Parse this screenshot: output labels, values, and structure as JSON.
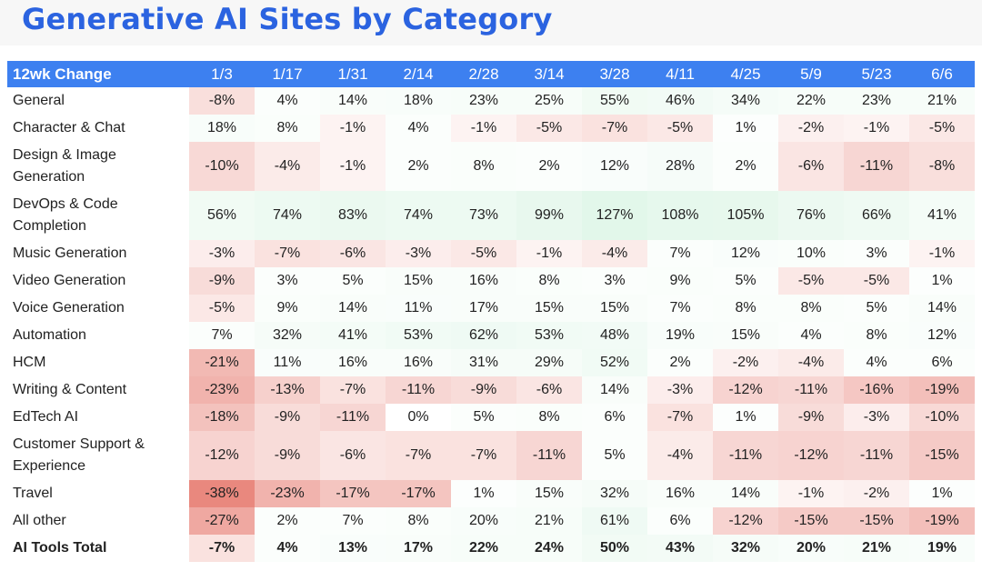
{
  "page": {
    "title": "Generative AI Sites by Category"
  },
  "chart_data": {
    "type": "table",
    "title": "Generative AI Sites by Category",
    "header_label": "12wk Change",
    "columns": [
      "1/3",
      "1/17",
      "1/31",
      "2/14",
      "2/28",
      "3/14",
      "3/28",
      "4/11",
      "4/25",
      "5/9",
      "5/23",
      "6/6"
    ],
    "rows": [
      {
        "label": "General",
        "values": [
          -8,
          4,
          14,
          18,
          23,
          25,
          55,
          46,
          34,
          22,
          23,
          21
        ]
      },
      {
        "label": "Character & Chat",
        "values": [
          18,
          8,
          -1,
          4,
          -1,
          -5,
          -7,
          -5,
          1,
          -2,
          -1,
          -5
        ]
      },
      {
        "label": "Design & Image Generation",
        "values": [
          -10,
          -4,
          -1,
          2,
          8,
          2,
          12,
          28,
          2,
          -6,
          -11,
          -8
        ]
      },
      {
        "label": "DevOps & Code Completion",
        "values": [
          56,
          74,
          83,
          74,
          73,
          99,
          127,
          108,
          105,
          76,
          66,
          41
        ]
      },
      {
        "label": "Music Generation",
        "values": [
          -3,
          -7,
          -6,
          -3,
          -5,
          -1,
          -4,
          7,
          12,
          10,
          3,
          -1
        ]
      },
      {
        "label": "Video Generation",
        "values": [
          -9,
          3,
          5,
          15,
          16,
          8,
          3,
          9,
          5,
          -5,
          -5,
          1
        ]
      },
      {
        "label": "Voice Generation",
        "values": [
          -5,
          9,
          14,
          11,
          17,
          15,
          15,
          7,
          8,
          8,
          5,
          14
        ]
      },
      {
        "label": "Automation",
        "values": [
          7,
          32,
          41,
          53,
          62,
          53,
          48,
          19,
          15,
          4,
          8,
          12
        ]
      },
      {
        "label": "HCM",
        "values": [
          -21,
          11,
          16,
          16,
          31,
          29,
          52,
          2,
          -2,
          -4,
          4,
          6
        ]
      },
      {
        "label": "Writing & Content",
        "values": [
          -23,
          -13,
          -7,
          -11,
          -9,
          -6,
          14,
          -3,
          -12,
          -11,
          -16,
          -19
        ]
      },
      {
        "label": "EdTech AI",
        "values": [
          -18,
          -9,
          -11,
          0,
          5,
          8,
          6,
          -7,
          1,
          -9,
          -3,
          -10
        ]
      },
      {
        "label": "Customer Support & Experience",
        "values": [
          -12,
          -9,
          -6,
          -7,
          -7,
          -11,
          5,
          -4,
          -11,
          -12,
          -11,
          -15
        ]
      },
      {
        "label": "Travel",
        "values": [
          -38,
          -23,
          -17,
          -17,
          1,
          15,
          32,
          16,
          14,
          -1,
          -2,
          1
        ]
      },
      {
        "label": "All other",
        "values": [
          -27,
          2,
          7,
          8,
          20,
          21,
          61,
          6,
          -12,
          -15,
          -15,
          -19
        ]
      },
      {
        "label": "AI Tools Total",
        "values": [
          -7,
          4,
          13,
          17,
          22,
          24,
          50,
          43,
          32,
          20,
          21,
          19
        ],
        "bold": true
      }
    ],
    "value_suffix": "%",
    "colors": {
      "header_bg": "#3d80f0",
      "header_text": "#ffffff",
      "title": "#2b63e0",
      "negative": "#e36a5e",
      "positive": "#5fd08a"
    }
  }
}
